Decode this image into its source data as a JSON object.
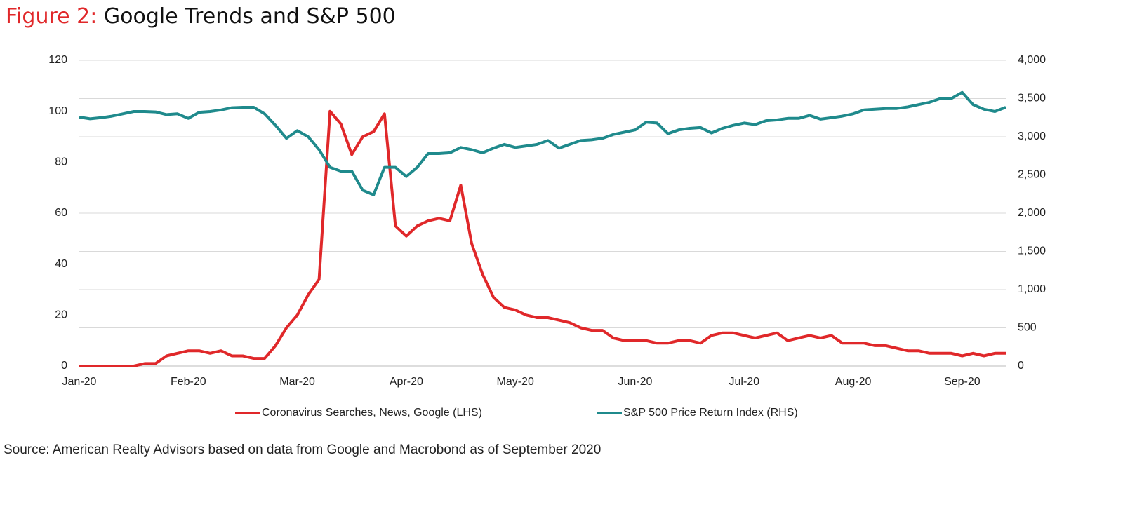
{
  "chart_data": {
    "type": "line",
    "figure_label": "Figure 2:",
    "title": "Google Trends and S&P 500",
    "source": "Source: American Realty Advisors based on data from Google and Macrobond as of September 2020",
    "categories": [
      "Jan-20",
      null,
      null,
      null,
      null,
      null,
      null,
      null,
      null,
      null,
      "Feb-20",
      null,
      null,
      null,
      null,
      null,
      null,
      null,
      null,
      null,
      "Mar-20",
      null,
      null,
      null,
      null,
      null,
      null,
      null,
      null,
      null,
      "Apr-20",
      null,
      null,
      null,
      null,
      null,
      null,
      null,
      null,
      null,
      "May-20",
      null,
      null,
      null,
      null,
      null,
      null,
      null,
      null,
      null,
      null,
      "Jun-20",
      null,
      null,
      null,
      null,
      null,
      null,
      null,
      null,
      null,
      "Jul-20",
      null,
      null,
      null,
      null,
      null,
      null,
      null,
      null,
      null,
      "Aug-20",
      null,
      null,
      null,
      null,
      null,
      null,
      null,
      null,
      null,
      "Sep-20",
      null,
      null,
      null,
      null
    ],
    "series": [
      {
        "name": "Coronavirus Searches, News, Google (LHS)",
        "color": "#e0282a",
        "axis": "y",
        "values": [
          0,
          0,
          0,
          0,
          0,
          0,
          1,
          1,
          4,
          5,
          6,
          6,
          5,
          6,
          4,
          4,
          3,
          3,
          8,
          15,
          20,
          28,
          34,
          100,
          95,
          83,
          90,
          92,
          99,
          55,
          51,
          55,
          57,
          58,
          57,
          71,
          48,
          36,
          27,
          23,
          22,
          20,
          19,
          19,
          18,
          17,
          15,
          14,
          14,
          11,
          10,
          10,
          10,
          9,
          9,
          10,
          10,
          9,
          12,
          13,
          13,
          12,
          11,
          12,
          13,
          10,
          11,
          12,
          11,
          12,
          9,
          9,
          9,
          8,
          8,
          7,
          6,
          6,
          5,
          5,
          5,
          4,
          5,
          4,
          5,
          5
        ]
      },
      {
        "name": "S&P 500 Price Return Index (RHS)",
        "color": "#1f8a8c",
        "axis": "y2",
        "values": [
          3257,
          3235,
          3250,
          3270,
          3300,
          3330,
          3330,
          3325,
          3290,
          3300,
          3240,
          3320,
          3330,
          3350,
          3380,
          3385,
          3385,
          3300,
          3150,
          2980,
          3080,
          3000,
          2830,
          2600,
          2550,
          2550,
          2300,
          2240,
          2600,
          2600,
          2480,
          2600,
          2780,
          2780,
          2790,
          2860,
          2830,
          2790,
          2850,
          2900,
          2860,
          2880,
          2900,
          2950,
          2850,
          2900,
          2950,
          2960,
          2980,
          3030,
          3060,
          3090,
          3190,
          3180,
          3040,
          3090,
          3110,
          3120,
          3050,
          3110,
          3150,
          3180,
          3160,
          3210,
          3220,
          3240,
          3240,
          3280,
          3230,
          3250,
          3270,
          3300,
          3350,
          3360,
          3370,
          3370,
          3390,
          3420,
          3450,
          3500,
          3500,
          3580,
          3420,
          3360,
          3330,
          3385
        ]
      }
    ],
    "ylim": [
      0,
      120
    ],
    "yticks": [
      0,
      20,
      40,
      60,
      80,
      100,
      120
    ],
    "y2lim": [
      0,
      4000
    ],
    "y2ticks": [
      0,
      500,
      {
        "value": 1000,
        "label": "1,000"
      },
      {
        "value": 1500,
        "label": "1,500"
      },
      {
        "value": 2000,
        "label": "2,000"
      },
      {
        "value": 2500,
        "label": "2,500"
      },
      {
        "value": 3000,
        "label": "3,000"
      },
      {
        "value": 3500,
        "label": "3,500"
      },
      {
        "value": 4000,
        "label": "4,000"
      }
    ],
    "grid": true,
    "legend": "bottom"
  }
}
